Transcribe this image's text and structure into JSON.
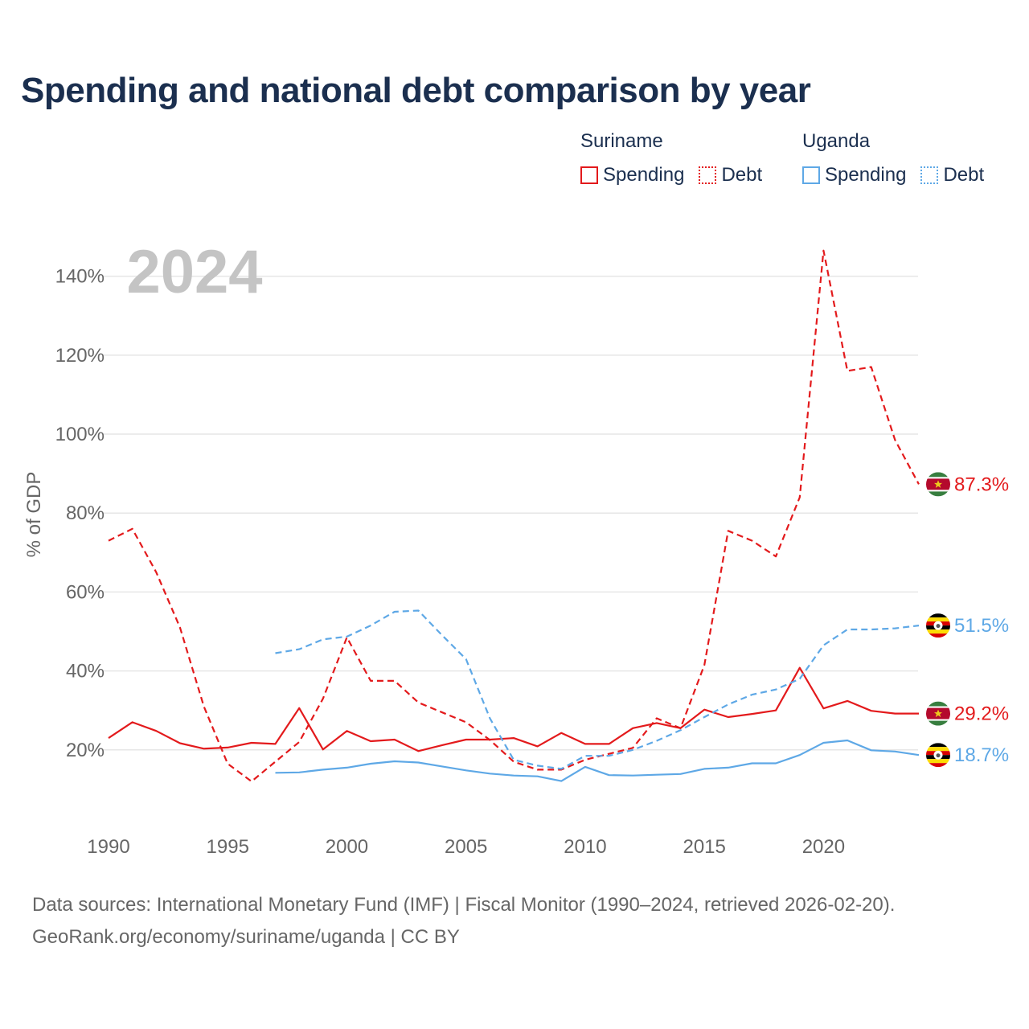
{
  "title": "Spending and national debt comparison by year",
  "legend": {
    "groups": [
      {
        "country": "Suriname",
        "items": [
          "Spending",
          "Debt"
        ]
      },
      {
        "country": "Uganda",
        "items": [
          "Spending",
          "Debt"
        ]
      }
    ]
  },
  "colors": {
    "suriname": "#e31a1c",
    "uganda": "#5ea8e6",
    "text": "#1b2f4f",
    "grid": "#e6e6e6",
    "year": "#c4c4c4"
  },
  "footer": {
    "line1": "Data sources: International Monetary Fund (IMF) | Fiscal Monitor (1990–2024, retrieved 2026-02-20).",
    "line2": "GeoRank.org/economy/suriname/uganda | CC BY"
  },
  "chart_data": {
    "type": "line",
    "year_label": "2024",
    "ylabel": "% of GDP",
    "xlim": [
      1990,
      2024
    ],
    "ylim": [
      0,
      148
    ],
    "xticks": [
      1990,
      1995,
      2000,
      2005,
      2010,
      2015,
      2020
    ],
    "yticks": [
      20,
      40,
      60,
      80,
      100,
      120,
      140
    ],
    "ytick_labels": [
      "20%",
      "40%",
      "60%",
      "80%",
      "100%",
      "120%",
      "140%"
    ],
    "series": [
      {
        "name": "Suriname Debt",
        "country": "Suriname",
        "metric": "Debt",
        "dashed": true,
        "color": "#e31a1c",
        "end_label": "87.3%",
        "x": [
          1990,
          1991,
          1992,
          1993,
          1994,
          1995,
          1996,
          1997,
          1998,
          1999,
          2000,
          2001,
          2002,
          2003,
          2004,
          2005,
          2006,
          2007,
          2008,
          2009,
          2010,
          2011,
          2012,
          2013,
          2014,
          2015,
          2016,
          2017,
          2018,
          2019,
          2020,
          2021,
          2022,
          2023,
          2024
        ],
        "y": [
          73,
          76,
          65,
          51,
          31,
          16.5,
          12,
          17,
          22,
          33,
          48.5,
          37.5,
          37.5,
          32,
          29.5,
          27,
          22.5,
          17,
          15,
          15,
          17.5,
          19,
          20.5,
          28,
          25.5,
          41.5,
          75.5,
          73,
          69,
          84,
          146.5,
          116,
          117,
          98.5,
          87.3
        ]
      },
      {
        "name": "Suriname Spending",
        "country": "Suriname",
        "metric": "Spending",
        "dashed": false,
        "color": "#e31a1c",
        "end_label": "29.2%",
        "x": [
          1990,
          1991,
          1992,
          1993,
          1994,
          1995,
          1996,
          1997,
          1998,
          1999,
          2000,
          2001,
          2002,
          2003,
          2004,
          2005,
          2006,
          2007,
          2008,
          2009,
          2010,
          2011,
          2012,
          2013,
          2014,
          2015,
          2016,
          2017,
          2018,
          2019,
          2020,
          2021,
          2022,
          2023,
          2024
        ],
        "y": [
          23,
          27,
          24.8,
          21.7,
          20.3,
          20.6,
          21.8,
          21.5,
          30.6,
          20.1,
          24.8,
          22.2,
          22.6,
          19.7,
          21.2,
          22.6,
          22.6,
          23,
          20.9,
          24.3,
          21.5,
          21.5,
          25.5,
          26.8,
          25.5,
          30.2,
          28.3,
          29.1,
          30,
          40.8,
          30.5,
          32.4,
          29.9,
          29.2,
          29.2
        ]
      },
      {
        "name": "Uganda Debt",
        "country": "Uganda",
        "metric": "Debt",
        "dashed": true,
        "color": "#5ea8e6",
        "end_label": "51.5%",
        "x": [
          1997,
          1998,
          1999,
          2000,
          2001,
          2002,
          2003,
          2004,
          2005,
          2006,
          2007,
          2008,
          2009,
          2010,
          2011,
          2012,
          2013,
          2014,
          2015,
          2016,
          2017,
          2018,
          2019,
          2020,
          2021,
          2022,
          2023,
          2024
        ],
        "y": [
          44.5,
          45.5,
          48,
          48.7,
          51.5,
          55,
          55.3,
          49,
          43,
          28,
          17.5,
          16,
          15.2,
          18.5,
          18.5,
          20,
          22.3,
          25,
          28.3,
          31.5,
          34,
          35.3,
          38,
          46.5,
          50.5,
          50.5,
          50.8,
          51.5
        ]
      },
      {
        "name": "Uganda Spending",
        "country": "Uganda",
        "metric": "Spending",
        "dashed": false,
        "color": "#5ea8e6",
        "end_label": "18.7%",
        "x": [
          1997,
          1998,
          1999,
          2000,
          2001,
          2002,
          2003,
          2004,
          2005,
          2006,
          2007,
          2008,
          2009,
          2010,
          2011,
          2012,
          2013,
          2014,
          2015,
          2016,
          2017,
          2018,
          2019,
          2020,
          2021,
          2022,
          2023,
          2024
        ],
        "y": [
          14.2,
          14.3,
          15,
          15.5,
          16.5,
          17.1,
          16.8,
          15.8,
          14.8,
          14,
          13.5,
          13.3,
          12.1,
          15.7,
          13.6,
          13.5,
          13.7,
          13.9,
          15.2,
          15.5,
          16.6,
          16.6,
          18.7,
          21.8,
          22.4,
          19.9,
          19.6,
          18.7
        ]
      }
    ]
  }
}
